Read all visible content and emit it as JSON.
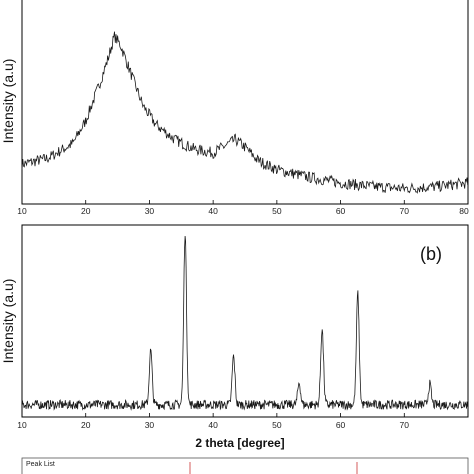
{
  "chart_data": [
    {
      "type": "line",
      "ylabel": "Intensity (a.u)",
      "xlim": [
        10,
        80
      ],
      "x_ticks": [
        "10",
        "20",
        "30",
        "40",
        "50",
        "60",
        "70",
        "80"
      ],
      "series": [
        {
          "x": [
            10,
            14,
            18,
            20,
            22,
            23.5,
            24.5,
            25.5,
            27,
            29,
            31,
            34,
            37,
            40,
            42,
            43.5,
            45,
            47,
            50,
            55,
            60,
            65,
            70,
            75,
            80
          ],
          "y": [
            0.17,
            0.2,
            0.28,
            0.4,
            0.58,
            0.73,
            0.85,
            0.8,
            0.66,
            0.48,
            0.38,
            0.3,
            0.25,
            0.23,
            0.27,
            0.3,
            0.26,
            0.19,
            0.14,
            0.1,
            0.07,
            0.05,
            0.04,
            0.05,
            0.07
          ]
        }
      ]
    },
    {
      "type": "line",
      "panel_label": "(b)",
      "ylabel": "Intensity (a.u)",
      "xlabel": "2 theta [degree]",
      "xlim": [
        10,
        80
      ],
      "x_ticks": [
        "10",
        "20",
        "30",
        "40",
        "50",
        "60",
        "70"
      ],
      "baseline": 0.05,
      "peaks": [
        {
          "x": 30.2,
          "y": 0.34
        },
        {
          "x": 35.6,
          "y": 0.98
        },
        {
          "x": 43.2,
          "y": 0.31
        },
        {
          "x": 53.5,
          "y": 0.17
        },
        {
          "x": 57.1,
          "y": 0.46
        },
        {
          "x": 62.7,
          "y": 0.65
        },
        {
          "x": 74.0,
          "y": 0.16
        }
      ]
    },
    {
      "type": "bar",
      "title": "Peak List"
    }
  ]
}
